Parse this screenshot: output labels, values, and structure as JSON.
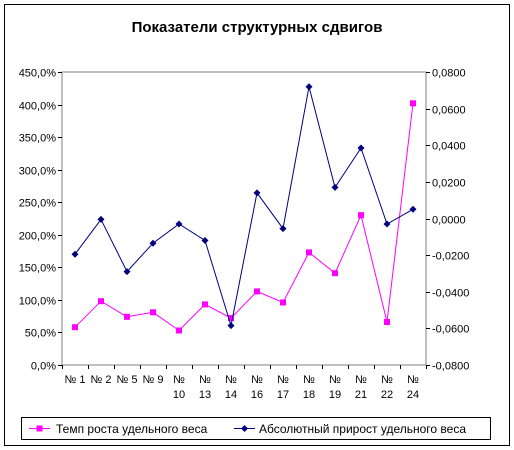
{
  "chart_data": {
    "type": "line",
    "title": "Показатели структурных сдвигов",
    "categories": [
      [
        "№ 1"
      ],
      [
        "№ 2"
      ],
      [
        "№ 5"
      ],
      [
        "№ 9"
      ],
      [
        "№",
        "10"
      ],
      [
        "№",
        "13"
      ],
      [
        "№",
        "14"
      ],
      [
        "№",
        "16"
      ],
      [
        "№",
        "17"
      ],
      [
        "№",
        "18"
      ],
      [
        "№",
        "19"
      ],
      [
        "№",
        "21"
      ],
      [
        "№",
        "22"
      ],
      [
        "№",
        "24"
      ]
    ],
    "y_left": {
      "min": 0,
      "max": 450,
      "step": 50,
      "ticks": [
        "0,0%",
        "50,0%",
        "100,0%",
        "150,0%",
        "200,0%",
        "250,0%",
        "300,0%",
        "350,0%",
        "400,0%",
        "450,0%"
      ]
    },
    "y_right": {
      "min": -0.08,
      "max": 0.08,
      "step": 0.02,
      "ticks": [
        "-0,0800",
        "-0,0600",
        "-0,0400",
        "-0,0200",
        "0,0000",
        "0,0200",
        "0,0400",
        "0,0600",
        "0,0800"
      ]
    },
    "series": [
      {
        "name": "Темп роста удельного веса",
        "axis": "left",
        "color": "#ff00ff",
        "marker": "square",
        "values": [
          58,
          98,
          74,
          81,
          53,
          93,
          72,
          113,
          96,
          173,
          141,
          230,
          66,
          402
        ]
      },
      {
        "name": "Абсолютный прирост удельного веса",
        "axis": "right",
        "color": "#000080",
        "marker": "diamond",
        "values": [
          -0.0195,
          -0.0005,
          -0.029,
          -0.0135,
          -0.003,
          -0.012,
          -0.0585,
          0.014,
          -0.0055,
          0.072,
          0.017,
          0.0385,
          -0.003,
          0.005
        ]
      }
    ],
    "grid": false,
    "legend": "bottom"
  }
}
